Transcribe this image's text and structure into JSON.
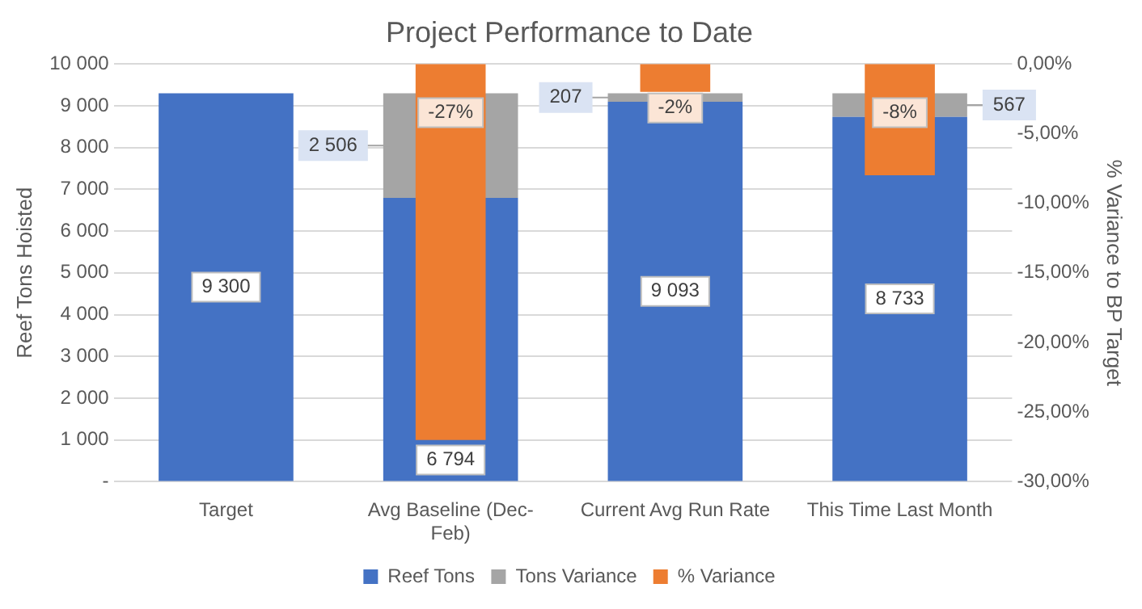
{
  "chart_data": {
    "type": "bar",
    "title": "Project Performance to Date",
    "ylabel": "Reef Tons Hoisted",
    "y2label": "% Variance to BP Target",
    "categories": [
      "Target",
      "Avg Baseline (Dec-Feb)",
      "Current Avg Run Rate",
      "This Time Last Month"
    ],
    "stacked": true,
    "series": [
      {
        "name": "Reef Tons",
        "color": "#4472c4",
        "values": [
          9300,
          6794,
          9093,
          8733
        ],
        "value_labels": [
          "9 300",
          "6 794",
          "9 093",
          "8 733"
        ]
      },
      {
        "name": "Tons Variance",
        "color": "#a5a5a5",
        "values": [
          null,
          2506,
          207,
          567
        ],
        "value_labels": [
          null,
          "2 506",
          "207",
          "567"
        ]
      },
      {
        "name": "% Variance",
        "color": "#ed7d31",
        "axis": "y2",
        "values": [
          null,
          -27,
          -2,
          -8
        ],
        "value_labels": [
          null,
          "-27%",
          "-2%",
          "-8%"
        ]
      }
    ],
    "ylim": [
      0,
      10000
    ],
    "yticks": [
      {
        "value": 0,
        "label": "-"
      },
      {
        "value": 1000,
        "label": "1 000"
      },
      {
        "value": 2000,
        "label": "2 000"
      },
      {
        "value": 3000,
        "label": "3 000"
      },
      {
        "value": 4000,
        "label": "4 000"
      },
      {
        "value": 5000,
        "label": "5 000"
      },
      {
        "value": 6000,
        "label": "6 000"
      },
      {
        "value": 7000,
        "label": "7 000"
      },
      {
        "value": 8000,
        "label": "8 000"
      },
      {
        "value": 9000,
        "label": "9 000"
      },
      {
        "value": 10000,
        "label": "10 000"
      }
    ],
    "y2lim": [
      -30,
      0
    ],
    "y2ticks": [
      {
        "value": 0,
        "label": "0,00%"
      },
      {
        "value": -5,
        "label": "-5,00%"
      },
      {
        "value": -10,
        "label": "-10,00%"
      },
      {
        "value": -15,
        "label": "-15,00%"
      },
      {
        "value": -20,
        "label": "-20,00%"
      },
      {
        "value": -25,
        "label": "-25,00%"
      },
      {
        "value": -30,
        "label": "-30,00%"
      }
    ],
    "grid": "y",
    "legend": "bottom"
  }
}
